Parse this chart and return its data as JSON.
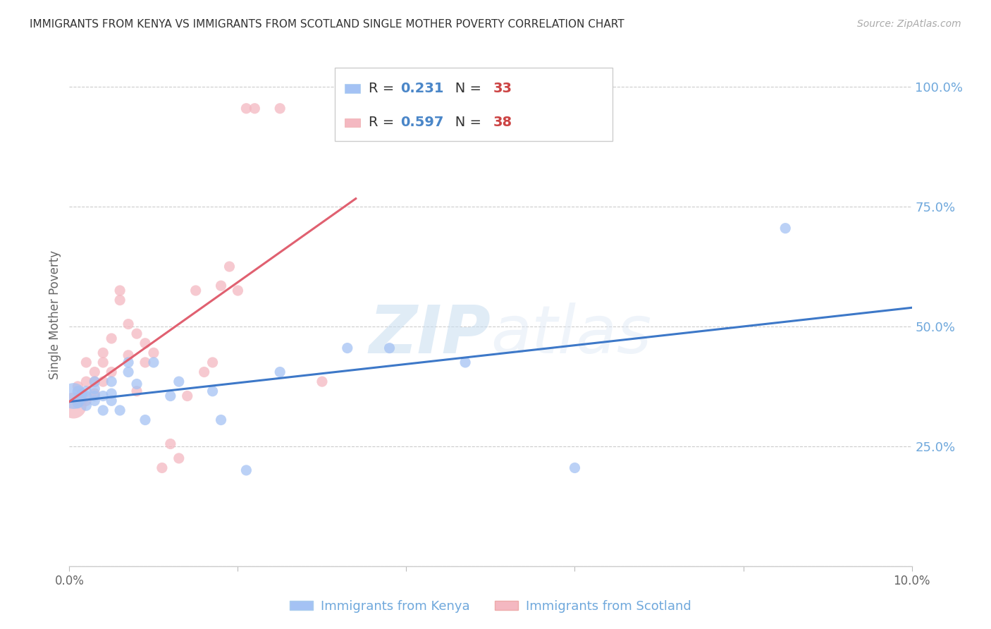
{
  "title": "IMMIGRANTS FROM KENYA VS IMMIGRANTS FROM SCOTLAND SINGLE MOTHER POVERTY CORRELATION CHART",
  "source": "Source: ZipAtlas.com",
  "ylabel": "Single Mother Poverty",
  "x_min": 0.0,
  "x_max": 0.1,
  "y_min": 0.0,
  "y_max": 1.05,
  "y_ticks": [
    0.0,
    0.25,
    0.5,
    0.75,
    1.0
  ],
  "y_tick_labels": [
    "",
    "25.0%",
    "50.0%",
    "75.0%",
    "100.0%"
  ],
  "x_ticks": [
    0.0,
    0.02,
    0.04,
    0.06,
    0.08,
    0.1
  ],
  "x_tick_labels": [
    "0.0%",
    "",
    "",
    "",
    "",
    "10.0%"
  ],
  "kenya_color": "#a4c2f4",
  "scotland_color": "#f4b8c1",
  "kenya_line_color": "#3d78c8",
  "scotland_line_color": "#e06070",
  "kenya_R": 0.231,
  "kenya_N": 33,
  "scotland_R": 0.597,
  "scotland_N": 38,
  "legend_label_kenya": "Immigrants from Kenya",
  "legend_label_scotland": "Immigrants from Scotland",
  "watermark_zip": "ZIP",
  "watermark_atlas": "atlas",
  "background_color": "#ffffff",
  "axis_tick_color": "#6fa8dc",
  "legend_R_color": "#4a86c8",
  "legend_N_color": "#cc4444",
  "kenya_x": [
    0.0005,
    0.001,
    0.001,
    0.0015,
    0.002,
    0.002,
    0.002,
    0.003,
    0.003,
    0.003,
    0.003,
    0.004,
    0.004,
    0.005,
    0.005,
    0.005,
    0.006,
    0.007,
    0.007,
    0.008,
    0.009,
    0.01,
    0.012,
    0.013,
    0.017,
    0.018,
    0.021,
    0.025,
    0.033,
    0.038,
    0.047,
    0.06,
    0.085
  ],
  "kenya_y": [
    0.355,
    0.34,
    0.365,
    0.36,
    0.335,
    0.355,
    0.365,
    0.345,
    0.355,
    0.37,
    0.385,
    0.325,
    0.355,
    0.345,
    0.36,
    0.385,
    0.325,
    0.405,
    0.425,
    0.38,
    0.305,
    0.425,
    0.355,
    0.385,
    0.365,
    0.305,
    0.2,
    0.405,
    0.455,
    0.455,
    0.425,
    0.205,
    0.705
  ],
  "kenya_sizes": [
    700,
    120,
    120,
    120,
    120,
    120,
    120,
    120,
    120,
    120,
    120,
    120,
    120,
    120,
    120,
    120,
    120,
    120,
    120,
    120,
    120,
    120,
    120,
    120,
    120,
    120,
    120,
    120,
    120,
    120,
    120,
    120,
    120
  ],
  "scotland_x": [
    0.0005,
    0.001,
    0.001,
    0.0015,
    0.002,
    0.002,
    0.002,
    0.003,
    0.003,
    0.003,
    0.004,
    0.004,
    0.004,
    0.005,
    0.005,
    0.006,
    0.006,
    0.007,
    0.007,
    0.008,
    0.008,
    0.009,
    0.009,
    0.01,
    0.011,
    0.012,
    0.013,
    0.014,
    0.015,
    0.016,
    0.017,
    0.018,
    0.019,
    0.02,
    0.021,
    0.022,
    0.025,
    0.03
  ],
  "scotland_y": [
    0.335,
    0.345,
    0.375,
    0.345,
    0.345,
    0.385,
    0.425,
    0.36,
    0.385,
    0.405,
    0.385,
    0.425,
    0.445,
    0.405,
    0.475,
    0.555,
    0.575,
    0.44,
    0.505,
    0.365,
    0.485,
    0.425,
    0.465,
    0.445,
    0.205,
    0.255,
    0.225,
    0.355,
    0.575,
    0.405,
    0.425,
    0.585,
    0.625,
    0.575,
    0.955,
    0.955,
    0.955,
    0.385
  ],
  "scotland_sizes": [
    700,
    120,
    120,
    120,
    120,
    120,
    120,
    120,
    120,
    120,
    120,
    120,
    120,
    120,
    120,
    120,
    120,
    120,
    120,
    120,
    120,
    120,
    120,
    120,
    120,
    120,
    120,
    120,
    120,
    120,
    120,
    120,
    120,
    120,
    120,
    120,
    120,
    120
  ]
}
